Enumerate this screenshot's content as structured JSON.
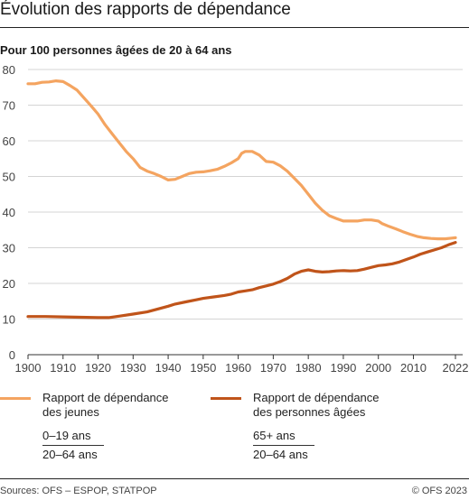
{
  "title": "Évolution des rapports de dépendance",
  "subtitle": "Pour 100 personnes âgées de 20 à 64 ans",
  "colors": {
    "jeunes": "#F4A460",
    "agees": "#C0541A",
    "grid": "#d4d4d4",
    "axis": "#333333"
  },
  "legend": [
    {
      "label_line1": "Rapport de dépendance",
      "label_line2": "des jeunes",
      "numerator": "0–19 ans",
      "denominator": "20–64 ans"
    },
    {
      "label_line1": "Rapport de dépendance",
      "label_line2": "des personnes âgées",
      "numerator": "65+ ans",
      "denominator": "20–64 ans"
    }
  ],
  "footer": {
    "source": "Sources: OFS – ESPOP, STATPOP",
    "copyright": "© OFS 2023"
  },
  "chart_data": {
    "type": "line",
    "xlim": [
      1900,
      2022
    ],
    "ylim": [
      0,
      80
    ],
    "x_ticks": [
      1900,
      1910,
      1920,
      1930,
      1940,
      1950,
      1960,
      1970,
      1980,
      1990,
      2000,
      2010,
      2022
    ],
    "y_ticks": [
      0,
      10,
      20,
      30,
      40,
      50,
      60,
      70,
      80
    ],
    "grid": true,
    "series": [
      {
        "name": "Rapport de dépendance des jeunes",
        "color": "#F4A460",
        "points": [
          [
            1900,
            76.0
          ],
          [
            1902,
            76.0
          ],
          [
            1904,
            76.4
          ],
          [
            1906,
            76.5
          ],
          [
            1908,
            76.8
          ],
          [
            1910,
            76.6
          ],
          [
            1912,
            75.5
          ],
          [
            1914,
            74.2
          ],
          [
            1916,
            72.0
          ],
          [
            1918,
            69.8
          ],
          [
            1920,
            67.5
          ],
          [
            1922,
            64.5
          ],
          [
            1924,
            62.0
          ],
          [
            1926,
            59.5
          ],
          [
            1928,
            57.0
          ],
          [
            1930,
            55.0
          ],
          [
            1932,
            52.5
          ],
          [
            1934,
            51.5
          ],
          [
            1936,
            50.8
          ],
          [
            1938,
            50.0
          ],
          [
            1940,
            49.0
          ],
          [
            1942,
            49.2
          ],
          [
            1944,
            50.0
          ],
          [
            1946,
            50.8
          ],
          [
            1948,
            51.2
          ],
          [
            1950,
            51.3
          ],
          [
            1952,
            51.6
          ],
          [
            1954,
            52.0
          ],
          [
            1956,
            52.8
          ],
          [
            1958,
            53.8
          ],
          [
            1960,
            55.0
          ],
          [
            1961,
            56.5
          ],
          [
            1962,
            57.0
          ],
          [
            1964,
            57.0
          ],
          [
            1966,
            56.0
          ],
          [
            1968,
            54.2
          ],
          [
            1970,
            54.0
          ],
          [
            1972,
            53.0
          ],
          [
            1974,
            51.5
          ],
          [
            1976,
            49.5
          ],
          [
            1978,
            47.5
          ],
          [
            1980,
            45.0
          ],
          [
            1982,
            42.5
          ],
          [
            1984,
            40.5
          ],
          [
            1986,
            39.0
          ],
          [
            1988,
            38.2
          ],
          [
            1990,
            37.5
          ],
          [
            1992,
            37.5
          ],
          [
            1994,
            37.5
          ],
          [
            1996,
            37.8
          ],
          [
            1998,
            37.8
          ],
          [
            2000,
            37.5
          ],
          [
            2001,
            36.8
          ],
          [
            2003,
            36.0
          ],
          [
            2005,
            35.3
          ],
          [
            2007,
            34.5
          ],
          [
            2009,
            33.8
          ],
          [
            2011,
            33.2
          ],
          [
            2013,
            32.8
          ],
          [
            2015,
            32.6
          ],
          [
            2017,
            32.5
          ],
          [
            2019,
            32.5
          ],
          [
            2021,
            32.7
          ],
          [
            2022,
            32.8
          ]
        ]
      },
      {
        "name": "Rapport de dépendance des personnes âgées",
        "color": "#C0541A",
        "points": [
          [
            1900,
            10.7
          ],
          [
            1905,
            10.7
          ],
          [
            1910,
            10.6
          ],
          [
            1915,
            10.5
          ],
          [
            1920,
            10.4
          ],
          [
            1923,
            10.4
          ],
          [
            1926,
            10.8
          ],
          [
            1930,
            11.4
          ],
          [
            1934,
            12.0
          ],
          [
            1937,
            12.8
          ],
          [
            1940,
            13.6
          ],
          [
            1942,
            14.2
          ],
          [
            1945,
            14.8
          ],
          [
            1948,
            15.4
          ],
          [
            1950,
            15.8
          ],
          [
            1953,
            16.2
          ],
          [
            1956,
            16.6
          ],
          [
            1958,
            17.0
          ],
          [
            1960,
            17.6
          ],
          [
            1962,
            17.9
          ],
          [
            1964,
            18.2
          ],
          [
            1966,
            18.8
          ],
          [
            1968,
            19.3
          ],
          [
            1970,
            19.8
          ],
          [
            1972,
            20.5
          ],
          [
            1974,
            21.4
          ],
          [
            1976,
            22.6
          ],
          [
            1978,
            23.4
          ],
          [
            1980,
            23.8
          ],
          [
            1982,
            23.4
          ],
          [
            1984,
            23.2
          ],
          [
            1986,
            23.3
          ],
          [
            1988,
            23.5
          ],
          [
            1990,
            23.6
          ],
          [
            1992,
            23.5
          ],
          [
            1994,
            23.6
          ],
          [
            1996,
            24.0
          ],
          [
            1998,
            24.5
          ],
          [
            2000,
            25.0
          ],
          [
            2002,
            25.2
          ],
          [
            2004,
            25.5
          ],
          [
            2006,
            26.0
          ],
          [
            2008,
            26.7
          ],
          [
            2010,
            27.4
          ],
          [
            2012,
            28.2
          ],
          [
            2014,
            28.8
          ],
          [
            2016,
            29.4
          ],
          [
            2018,
            30.0
          ],
          [
            2020,
            30.8
          ],
          [
            2022,
            31.5
          ]
        ]
      }
    ]
  }
}
